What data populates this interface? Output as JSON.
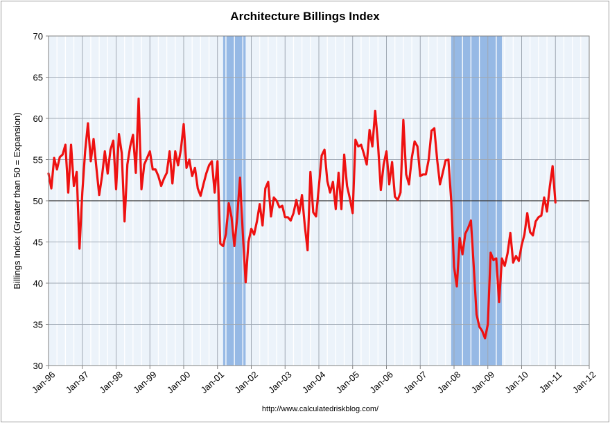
{
  "chart_data": {
    "type": "line",
    "title": "Architecture Billings Index",
    "ylabel": "Billings Index (Greater than 50 = Expansion)",
    "xlabel": "",
    "source": "http://www.calculatedriskblog.com/",
    "ylim": [
      30,
      70
    ],
    "yticks": [
      30,
      35,
      40,
      45,
      50,
      55,
      60,
      65,
      70
    ],
    "xlim": [
      "1996-01",
      "2012-01"
    ],
    "xticks": [
      "Jan-96",
      "Jan-97",
      "Jan-98",
      "Jan-99",
      "Jan-00",
      "Jan-01",
      "Jan-02",
      "Jan-03",
      "Jan-04",
      "Jan-05",
      "Jan-06",
      "Jan-07",
      "Jan-08",
      "Jan-09",
      "Jan-10",
      "Jan-11",
      "Jan-12"
    ],
    "grid": true,
    "reference_line": 50,
    "recessions": [
      {
        "start": "2001-03",
        "end": "2001-11"
      },
      {
        "start": "2007-12",
        "end": "2009-06"
      }
    ],
    "series": [
      {
        "color": "#ee1111",
        "start": "1996-01",
        "values": [
          53.3,
          51.5,
          55.2,
          53.8,
          55.3,
          55.6,
          56.8,
          51.0,
          56.8,
          51.8,
          53.5,
          44.2,
          51.0,
          56.0,
          59.4,
          54.8,
          57.5,
          54.0,
          50.7,
          53.0,
          56.0,
          53.3,
          56.2,
          57.3,
          51.4,
          58.1,
          55.8,
          47.5,
          54.4,
          56.6,
          58.0,
          53.4,
          62.4,
          51.4,
          54.4,
          55.2,
          56.0,
          53.8,
          53.8,
          53.0,
          51.8,
          52.7,
          53.4,
          56.0,
          52.1,
          56.0,
          54.3,
          56.2,
          59.3,
          54.0,
          55.0,
          53.0,
          54.0,
          51.5,
          50.6,
          52.0,
          53.3,
          54.3,
          54.8,
          51.0,
          54.8,
          44.8,
          44.5,
          46.0,
          49.7,
          48.0,
          44.5,
          48.0,
          52.8,
          46.0,
          40.1,
          45.0,
          46.6,
          45.9,
          47.5,
          49.6,
          47.0,
          51.5,
          52.3,
          48.1,
          50.4,
          50.0,
          49.2,
          49.4,
          48.0,
          48.0,
          47.6,
          48.5,
          50.1,
          48.4,
          50.7,
          47.0,
          44.0,
          53.5,
          48.6,
          48.1,
          51.7,
          55.5,
          56.2,
          52.4,
          51.0,
          52.3,
          49.0,
          53.4,
          49.0,
          55.6,
          51.8,
          50.3,
          48.5,
          57.4,
          56.6,
          56.8,
          55.7,
          54.4,
          58.6,
          56.6,
          60.9,
          56.9,
          51.3,
          54.4,
          56.0,
          52.0,
          54.7,
          50.5,
          50.1,
          51.0,
          59.8,
          53.2,
          52.0,
          55.2,
          57.2,
          56.6,
          53.0,
          53.2,
          53.2,
          55.0,
          58.5,
          58.8,
          55.0,
          52.0,
          53.4,
          54.9,
          55.0,
          50.0,
          42.0,
          39.6,
          45.5,
          43.5,
          46.0,
          46.7,
          47.6,
          42.0,
          36.2,
          34.7,
          34.2,
          33.3,
          35.0,
          43.7,
          42.8,
          43.0,
          37.7,
          43.0,
          42.1,
          43.6,
          46.1,
          42.5,
          43.3,
          42.7,
          44.6,
          45.9,
          48.5,
          46.2,
          45.8,
          47.5,
          48.0,
          48.2,
          50.4,
          48.7,
          51.7,
          54.2,
          49.8
        ]
      }
    ]
  }
}
